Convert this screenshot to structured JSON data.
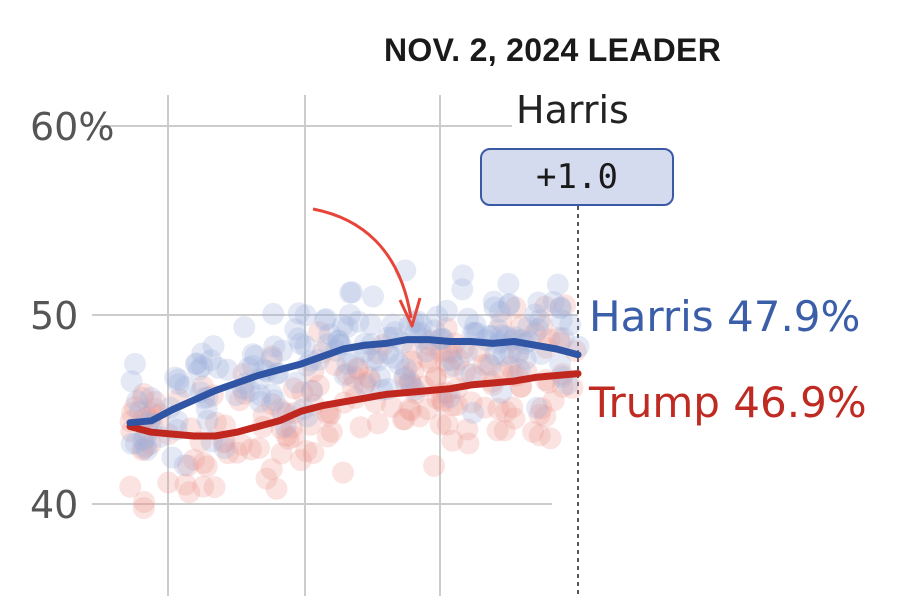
{
  "header": {
    "title": "NOV. 2, 2024 LEADER",
    "leader": "Harris",
    "margin": "+1.0"
  },
  "labels": {
    "harris": "Harris 47.9%",
    "trump": "Trump 46.9%"
  },
  "colors": {
    "harris": "#2f55a4",
    "trump": "#c0271f",
    "harris_dots": "#9fb0dc",
    "trump_dots": "#ec9a94",
    "annotation_arrow": "#e8453a",
    "grid": "#cccccc"
  },
  "chart_data": {
    "type": "line",
    "xlabel": "",
    "ylabel": "",
    "ylim": [
      38,
      62
    ],
    "y_ticks": [
      "60%",
      "50",
      "40"
    ],
    "y_tick_values": [
      60,
      50,
      40
    ],
    "grid": true,
    "series": [
      {
        "name": "Harris",
        "color": "#2f55a4",
        "values": [
          44.3,
          44.4,
          45.0,
          45.5,
          46.0,
          46.4,
          46.8,
          47.1,
          47.4,
          47.8,
          48.2,
          48.4,
          48.5,
          48.7,
          48.7,
          48.6,
          48.6,
          48.5,
          48.6,
          48.4,
          48.2,
          47.9
        ]
      },
      {
        "name": "Trump",
        "color": "#c0271f",
        "values": [
          44.1,
          43.8,
          43.7,
          43.6,
          43.6,
          43.8,
          44.1,
          44.4,
          44.9,
          45.2,
          45.4,
          45.6,
          45.8,
          45.9,
          46.0,
          46.1,
          46.3,
          46.4,
          46.5,
          46.7,
          46.8,
          46.9
        ]
      }
    ],
    "final_values": {
      "Harris": 47.9,
      "Trump": 46.9
    }
  }
}
